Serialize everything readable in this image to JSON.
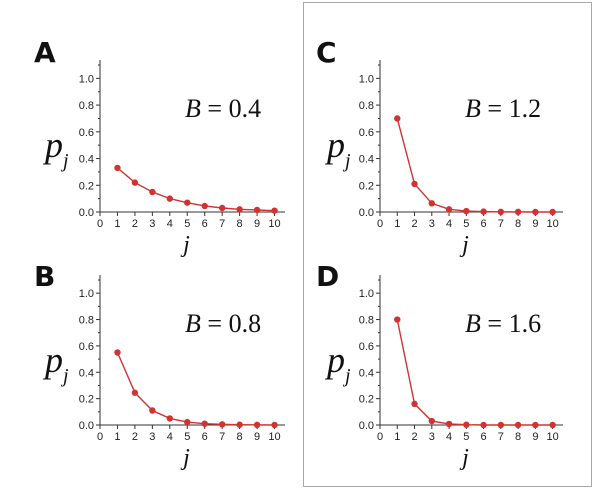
{
  "chart_data": [
    {
      "panel": "A",
      "type": "line",
      "annotation": {
        "var": "B",
        "equals": " = ",
        "value": "0.4"
      },
      "xlabel": "j",
      "ylabel": "p",
      "ylabel_sub": "j",
      "xlim": [
        0,
        10.6
      ],
      "ylim": [
        0,
        1.1
      ],
      "xticks": [
        "0",
        "1",
        "2",
        "3",
        "4",
        "5",
        "6",
        "7",
        "8",
        "9",
        "10"
      ],
      "yticks": [
        "0.0",
        "0.2",
        "0.4",
        "0.6",
        "0.8",
        "1.0"
      ],
      "series": [
        {
          "x": [
            1,
            2,
            3,
            4,
            5,
            6,
            7,
            8,
            9,
            10
          ],
          "y": [
            0.33,
            0.22,
            0.15,
            0.1,
            0.07,
            0.045,
            0.03,
            0.02,
            0.015,
            0.01
          ]
        }
      ]
    },
    {
      "panel": "C",
      "type": "line",
      "annotation": {
        "var": "B",
        "equals": " = ",
        "value": "1.2"
      },
      "xlabel": "j",
      "ylabel": "p",
      "ylabel_sub": "j",
      "xlim": [
        0,
        10.6
      ],
      "ylim": [
        0,
        1.1
      ],
      "xticks": [
        "0",
        "1",
        "2",
        "3",
        "4",
        "5",
        "6",
        "7",
        "8",
        "9",
        "10"
      ],
      "yticks": [
        "0.0",
        "0.2",
        "0.4",
        "0.6",
        "0.8",
        "1.0"
      ],
      "series": [
        {
          "x": [
            1,
            2,
            3,
            4,
            5,
            6,
            7,
            8,
            9,
            10
          ],
          "y": [
            0.7,
            0.21,
            0.065,
            0.02,
            0.007,
            0.003,
            0.001,
            0.001,
            0.0,
            0.0
          ]
        }
      ]
    },
    {
      "panel": "B",
      "type": "line",
      "annotation": {
        "var": "B",
        "equals": " = ",
        "value": "0.8"
      },
      "xlabel": "j",
      "ylabel": "p",
      "ylabel_sub": "j",
      "xlim": [
        0,
        10.6
      ],
      "ylim": [
        0,
        1.1
      ],
      "xticks": [
        "0",
        "1",
        "2",
        "3",
        "4",
        "5",
        "6",
        "7",
        "8",
        "9",
        "10"
      ],
      "yticks": [
        "0.0",
        "0.2",
        "0.4",
        "0.6",
        "0.8",
        "1.0"
      ],
      "series": [
        {
          "x": [
            1,
            2,
            3,
            4,
            5,
            6,
            7,
            8,
            9,
            10
          ],
          "y": [
            0.55,
            0.245,
            0.11,
            0.05,
            0.022,
            0.01,
            0.005,
            0.002,
            0.001,
            0.0
          ]
        }
      ]
    },
    {
      "panel": "D",
      "type": "line",
      "annotation": {
        "var": "B",
        "equals": " = ",
        "value": "1.6"
      },
      "xlabel": "j",
      "ylabel": "p",
      "ylabel_sub": "j",
      "xlim": [
        0,
        10.6
      ],
      "ylim": [
        0,
        1.1
      ],
      "xticks": [
        "0",
        "1",
        "2",
        "3",
        "4",
        "5",
        "6",
        "7",
        "8",
        "9",
        "10"
      ],
      "yticks": [
        "0.0",
        "0.2",
        "0.4",
        "0.6",
        "0.8",
        "1.0"
      ],
      "series": [
        {
          "x": [
            1,
            2,
            3,
            4,
            5,
            6,
            7,
            8,
            9,
            10
          ],
          "y": [
            0.8,
            0.16,
            0.03,
            0.008,
            0.002,
            0.0,
            0.0,
            0.0,
            0.0,
            0.0
          ]
        }
      ]
    }
  ],
  "style": {
    "line_color": "#d23232",
    "marker_color": "#d23232",
    "axis_color": "#333333"
  }
}
